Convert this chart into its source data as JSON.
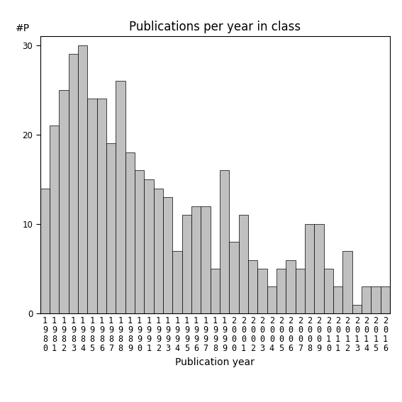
{
  "title": "Publications per year in class",
  "ylabel_annotation": "#P",
  "xlabel": "Publication year",
  "years": [
    1980,
    1981,
    1982,
    1983,
    1984,
    1985,
    1986,
    1987,
    1988,
    1989,
    1990,
    1991,
    1992,
    1993,
    1994,
    1995,
    1996,
    1997,
    1998,
    1999,
    2000,
    2001,
    2002,
    2003,
    2004,
    2005,
    2006,
    2007,
    2008,
    2009,
    2010,
    2011,
    2012,
    2013,
    2014,
    2015,
    2016
  ],
  "values": [
    14,
    21,
    25,
    29,
    30,
    24,
    24,
    19,
    26,
    18,
    16,
    15,
    14,
    13,
    7,
    11,
    12,
    12,
    5,
    16,
    8,
    11,
    6,
    5,
    3,
    5,
    6,
    5,
    10,
    10,
    5,
    3,
    7,
    1,
    3,
    3,
    3
  ],
  "bar_color": "#c0c0c0",
  "bar_edgecolor": "#000000",
  "ylim": [
    0,
    31
  ],
  "yticks": [
    0,
    10,
    20,
    30
  ],
  "background_color": "#ffffff",
  "title_fontsize": 12,
  "label_fontsize": 10,
  "tick_fontsize": 8.5,
  "ylabel_fontsize": 10
}
